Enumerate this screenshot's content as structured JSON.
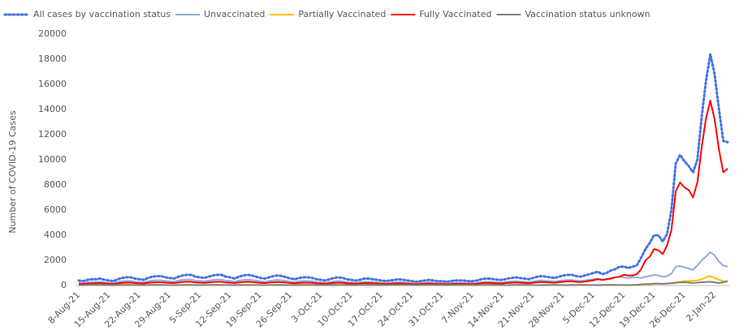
{
  "chart_data": {
    "type": "line",
    "y_label": "Number of COVID-19 Cases",
    "categories": [
      "8-Aug-21",
      null,
      null,
      null,
      null,
      null,
      null,
      "15-Aug-21",
      null,
      null,
      null,
      null,
      null,
      null,
      "22-Aug-21",
      null,
      null,
      null,
      null,
      null,
      null,
      "29-Aug-21",
      null,
      null,
      null,
      null,
      null,
      null,
      "5-Sep-21",
      null,
      null,
      null,
      null,
      null,
      null,
      "12-Sep-21",
      null,
      null,
      null,
      null,
      null,
      null,
      "19-Sep-21",
      null,
      null,
      null,
      null,
      null,
      null,
      "26-Sep-21",
      null,
      null,
      null,
      null,
      null,
      null,
      "3-Oct-21",
      null,
      null,
      null,
      null,
      null,
      null,
      "10-Oct-21",
      null,
      null,
      null,
      null,
      null,
      null,
      "17-Oct-21",
      null,
      null,
      null,
      null,
      null,
      null,
      "24-Oct-21",
      null,
      null,
      null,
      null,
      null,
      null,
      "31-Oct-21",
      null,
      null,
      null,
      null,
      null,
      null,
      "7-Nov-21",
      null,
      null,
      null,
      null,
      null,
      null,
      "14-Nov-21",
      null,
      null,
      null,
      null,
      null,
      null,
      "21-Nov-21",
      null,
      null,
      null,
      null,
      null,
      null,
      "28-Nov-21",
      null,
      null,
      null,
      null,
      null,
      null,
      "5-Dec-21",
      null,
      null,
      null,
      null,
      null,
      null,
      "12-Dec-21",
      null,
      null,
      null,
      null,
      null,
      null,
      "19-Dec-21",
      null,
      null,
      null,
      null,
      null,
      null,
      "26-Dec-21",
      null,
      null,
      null,
      null,
      null,
      null,
      "2-Jan-22",
      null,
      null,
      null
    ],
    "ylim": [
      0,
      20000
    ],
    "yticks": [
      0,
      2000,
      4000,
      6000,
      8000,
      10000,
      12000,
      14000,
      16000,
      18000,
      20000
    ],
    "legend": "top",
    "series": [
      {
        "name": "All cases by vaccination status",
        "color": "#4472e8",
        "style": "dotted",
        "values": [
          400,
          350,
          450,
          500,
          500,
          550,
          450,
          400,
          350,
          500,
          600,
          650,
          650,
          550,
          500,
          450,
          600,
          700,
          750,
          750,
          650,
          600,
          550,
          700,
          800,
          850,
          850,
          700,
          650,
          600,
          700,
          800,
          850,
          850,
          700,
          650,
          550,
          700,
          800,
          850,
          800,
          700,
          600,
          550,
          650,
          750,
          800,
          750,
          650,
          550,
          500,
          600,
          650,
          650,
          600,
          500,
          450,
          400,
          500,
          600,
          650,
          600,
          500,
          450,
          400,
          450,
          550,
          550,
          500,
          450,
          400,
          350,
          400,
          450,
          500,
          450,
          400,
          350,
          300,
          350,
          400,
          450,
          400,
          350,
          350,
          300,
          350,
          400,
          400,
          400,
          350,
          350,
          400,
          500,
          550,
          550,
          500,
          450,
          450,
          550,
          600,
          650,
          600,
          550,
          500,
          600,
          700,
          750,
          700,
          650,
          600,
          700,
          800,
          850,
          850,
          750,
          700,
          800,
          900,
          1000,
          1100,
          900,
          1000,
          1200,
          1300,
          1500,
          1500,
          1400,
          1500,
          1600,
          2200,
          2900,
          3400,
          4000,
          4000,
          3500,
          4100,
          6000,
          9700,
          10400,
          9900,
          9500,
          9000,
          10000,
          13400,
          16300,
          18400,
          16800,
          14000,
          11500,
          11400
        ]
      },
      {
        "name": "Unvaccinated",
        "color": "#8faadc",
        "style": "solid",
        "values": [
          220,
          190,
          250,
          280,
          280,
          300,
          250,
          220,
          190,
          280,
          330,
          360,
          360,
          300,
          280,
          250,
          330,
          390,
          410,
          410,
          360,
          330,
          300,
          390,
          440,
          470,
          470,
          390,
          360,
          330,
          390,
          440,
          470,
          470,
          390,
          360,
          300,
          390,
          440,
          470,
          440,
          390,
          330,
          300,
          360,
          410,
          440,
          410,
          360,
          300,
          280,
          330,
          360,
          360,
          330,
          280,
          250,
          220,
          280,
          330,
          360,
          330,
          280,
          250,
          220,
          250,
          300,
          300,
          280,
          250,
          220,
          190,
          220,
          250,
          280,
          250,
          220,
          190,
          170,
          190,
          220,
          250,
          220,
          190,
          190,
          170,
          190,
          220,
          220,
          220,
          190,
          190,
          220,
          270,
          300,
          300,
          270,
          250,
          250,
          300,
          320,
          350,
          320,
          300,
          270,
          320,
          370,
          400,
          370,
          350,
          320,
          370,
          420,
          440,
          440,
          390,
          360,
          410,
          460,
          500,
          550,
          450,
          500,
          600,
          650,
          700,
          650,
          600,
          650,
          650,
          600,
          700,
          750,
          850,
          800,
          700,
          750,
          950,
          1500,
          1550,
          1450,
          1350,
          1250,
          1600,
          2000,
          2300,
          2650,
          2400,
          1900,
          1600,
          1500
        ]
      },
      {
        "name": "Partially Vaccinated",
        "color": "#ffc000",
        "style": "solid",
        "values": [
          30,
          25,
          35,
          40,
          45,
          40,
          35,
          30,
          25,
          35,
          40,
          45,
          40,
          35,
          30,
          25,
          35,
          40,
          45,
          40,
          35,
          30,
          25,
          35,
          40,
          45,
          40,
          35,
          30,
          25,
          35,
          40,
          45,
          40,
          35,
          30,
          25,
          35,
          40,
          45,
          40,
          35,
          30,
          25,
          35,
          40,
          45,
          40,
          35,
          30,
          25,
          35,
          40,
          45,
          40,
          35,
          30,
          25,
          35,
          40,
          45,
          40,
          35,
          30,
          25,
          35,
          40,
          45,
          40,
          35,
          30,
          25,
          35,
          40,
          45,
          40,
          35,
          30,
          25,
          35,
          40,
          45,
          40,
          35,
          30,
          25,
          35,
          40,
          45,
          40,
          35,
          30,
          25,
          35,
          40,
          45,
          40,
          35,
          30,
          25,
          35,
          40,
          45,
          40,
          35,
          30,
          25,
          35,
          40,
          45,
          40,
          35,
          30,
          25,
          35,
          40,
          45,
          40,
          35,
          30,
          25,
          35,
          40,
          45,
          40,
          35,
          30,
          25,
          35,
          40,
          60,
          80,
          100,
          120,
          130,
          130,
          150,
          200,
          250,
          300,
          350,
          350,
          380,
          400,
          500,
          650,
          750,
          600,
          450,
          350,
          300
        ]
      },
      {
        "name": "Fully Vaccinated",
        "color": "#ff0000",
        "style": "solid",
        "values": [
          140,
          120,
          160,
          170,
          170,
          190,
          160,
          140,
          120,
          170,
          210,
          230,
          230,
          190,
          170,
          160,
          210,
          240,
          260,
          260,
          230,
          210,
          190,
          240,
          280,
          300,
          300,
          240,
          230,
          210,
          240,
          280,
          300,
          300,
          240,
          230,
          190,
          240,
          280,
          300,
          280,
          240,
          210,
          190,
          230,
          260,
          280,
          260,
          230,
          190,
          170,
          210,
          230,
          230,
          210,
          170,
          160,
          140,
          170,
          210,
          230,
          210,
          170,
          160,
          140,
          160,
          190,
          190,
          170,
          160,
          140,
          120,
          140,
          160,
          170,
          160,
          140,
          120,
          110,
          120,
          140,
          160,
          140,
          120,
          120,
          110,
          120,
          140,
          140,
          140,
          120,
          120,
          140,
          180,
          200,
          200,
          180,
          160,
          160,
          200,
          220,
          240,
          220,
          200,
          180,
          220,
          260,
          280,
          260,
          240,
          220,
          260,
          300,
          330,
          330,
          290,
          270,
          310,
          360,
          420,
          500,
          450,
          500,
          550,
          650,
          700,
          850,
          800,
          800,
          900,
          1300,
          2000,
          2300,
          2900,
          2800,
          2500,
          3200,
          4400,
          7500,
          8200,
          7800,
          7600,
          7000,
          8200,
          11000,
          13300,
          14700,
          13200,
          10800,
          9000,
          9300
        ]
      },
      {
        "name": "Vaccination status unknown",
        "color": "#7f7f7f",
        "style": "solid",
        "values": [
          40,
          35,
          45,
          50,
          50,
          45,
          40,
          40,
          35,
          45,
          50,
          50,
          45,
          40,
          40,
          35,
          45,
          50,
          50,
          45,
          40,
          40,
          35,
          45,
          50,
          50,
          45,
          40,
          40,
          35,
          45,
          50,
          50,
          45,
          40,
          40,
          35,
          45,
          50,
          50,
          45,
          40,
          40,
          35,
          45,
          50,
          50,
          45,
          40,
          40,
          35,
          45,
          50,
          50,
          45,
          40,
          40,
          35,
          45,
          50,
          50,
          45,
          40,
          40,
          35,
          45,
          50,
          50,
          45,
          40,
          40,
          35,
          45,
          50,
          50,
          45,
          40,
          40,
          35,
          45,
          50,
          50,
          45,
          40,
          40,
          35,
          45,
          50,
          50,
          45,
          40,
          40,
          35,
          45,
          50,
          50,
          45,
          40,
          40,
          35,
          45,
          50,
          50,
          45,
          40,
          40,
          35,
          45,
          50,
          50,
          45,
          40,
          40,
          35,
          45,
          50,
          50,
          45,
          40,
          40,
          35,
          45,
          50,
          50,
          45,
          40,
          40,
          35,
          45,
          50,
          100,
          110,
          120,
          150,
          150,
          140,
          160,
          180,
          220,
          250,
          260,
          230,
          200,
          230,
          260,
          280,
          300,
          250,
          200,
          250,
          350
        ]
      }
    ]
  }
}
